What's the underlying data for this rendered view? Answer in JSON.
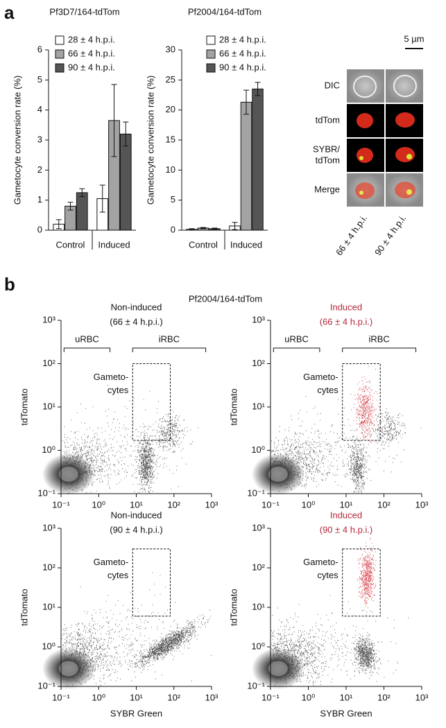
{
  "figure": {
    "panel_a_label": "a",
    "panel_b_label": "b",
    "panel_b_title": "Pf2004/164-tdTom",
    "micrograph": {
      "scale_bar": "5 µm",
      "rows": [
        [
          "DIC"
        ],
        [
          "tdTom"
        ],
        [
          "SYBR/",
          "tdTom"
        ],
        [
          "Merge"
        ]
      ],
      "columns": [
        "66 ± 4 h.p.i.",
        "90 ± 4 h.p.i."
      ]
    }
  },
  "chart_data": [
    {
      "type": "bar",
      "title": "Pf3D7/164-tdTom",
      "y_label": "Gametocyte conversion rate (%)",
      "categories": [
        "Control",
        "Induced"
      ],
      "series": [
        {
          "name": "28 ± 4 h.p.i.",
          "color": "#ffffff",
          "values": [
            0.2,
            1.05
          ],
          "errors": [
            0.15,
            0.45
          ]
        },
        {
          "name": "66 ± 4 h.p.i.",
          "color": "#a3a3a3",
          "values": [
            0.8,
            3.65
          ],
          "errors": [
            0.13,
            1.2
          ]
        },
        {
          "name": "90 ± 4 h.p.i.",
          "color": "#555555",
          "values": [
            1.25,
            3.2
          ],
          "errors": [
            0.13,
            0.4
          ]
        }
      ],
      "ylim": [
        0,
        6
      ],
      "yticks": [
        0,
        1,
        2,
        3,
        4,
        5,
        6
      ]
    },
    {
      "type": "bar",
      "title": "Pf2004/164-tdTom",
      "y_label": "Gametocyte conversion rate (%)",
      "categories": [
        "Control",
        "Induced"
      ],
      "series": [
        {
          "name": "28 ± 4 h.p.i.",
          "color": "#ffffff",
          "values": [
            0.15,
            0.7
          ],
          "errors": [
            0.1,
            0.6
          ]
        },
        {
          "name": "66 ± 4 h.p.i.",
          "color": "#a3a3a3",
          "values": [
            0.35,
            21.3
          ],
          "errors": [
            0.1,
            2
          ]
        },
        {
          "name": "90 ± 4 h.p.i.",
          "color": "#555555",
          "values": [
            0.25,
            23.5
          ],
          "errors": [
            0.1,
            1.1
          ]
        }
      ],
      "ylim": [
        0,
        30
      ],
      "yticks": [
        0,
        5,
        10,
        15,
        20,
        25,
        30
      ]
    },
    {
      "type": "flow",
      "title": [
        "Non-induced",
        "(66 ± 4 h.p.i.)"
      ],
      "title_color": "#111111",
      "y_label": "tdTomato",
      "brackets": [
        "uRBC",
        "iRBC"
      ],
      "gate_label": [
        "Gameto-",
        "cytes"
      ],
      "log_scale": true,
      "xlim": [
        0.1,
        1000
      ],
      "ylim": [
        0.1,
        1000
      ],
      "xticks": [
        {
          "value": 0.1,
          "label": "10⁻¹"
        },
        {
          "value": 1,
          "label": "10⁰"
        },
        {
          "value": 10,
          "label": "10¹"
        },
        {
          "value": 100,
          "label": "10²"
        },
        {
          "value": 1000,
          "label": "10³"
        }
      ],
      "yticks": [
        {
          "value": 0.1,
          "label": "10⁻¹"
        },
        {
          "value": 1,
          "label": "10⁰"
        },
        {
          "value": 10,
          "label": "10¹"
        },
        {
          "value": 100,
          "label": "10²"
        },
        {
          "value": 1000,
          "label": "10³"
        }
      ]
    },
    {
      "type": "flow",
      "title": [
        "Induced",
        "(66 ± 4 h.p.i.)"
      ],
      "title_color": "#b5283a",
      "y_label": "tdTomato",
      "brackets": [
        "uRBC",
        "iRBC"
      ],
      "gate_label": [
        "Gameto-",
        "cytes"
      ],
      "log_scale": true,
      "xlim": [
        0.1,
        1000
      ],
      "ylim": [
        0.1,
        1000
      ],
      "xticks": [
        {
          "value": 0.1,
          "label": "10⁻¹"
        },
        {
          "value": 1,
          "label": "10⁰"
        },
        {
          "value": 10,
          "label": "10¹"
        },
        {
          "value": 100,
          "label": "10²"
        },
        {
          "value": 1000,
          "label": "10³"
        }
      ],
      "yticks": [
        {
          "value": 0.1,
          "label": "10⁻¹"
        },
        {
          "value": 1,
          "label": "10⁰"
        },
        {
          "value": 10,
          "label": "10¹"
        },
        {
          "value": 100,
          "label": "10²"
        },
        {
          "value": 1000,
          "label": "10³"
        }
      ]
    },
    {
      "type": "flow",
      "title": [
        "Non-induced",
        "(90 ± 4 h.p.i.)"
      ],
      "title_color": "#111111",
      "y_label": "tdTomato",
      "x_label": "SYBR Green",
      "gate_label": [
        "Gameto-",
        "cytes"
      ],
      "log_scale": true,
      "xlim": [
        0.1,
        1000
      ],
      "ylim": [
        0.1,
        1000
      ],
      "xticks": [
        {
          "value": 0.1,
          "label": "10⁻¹"
        },
        {
          "value": 1,
          "label": "10⁰"
        },
        {
          "value": 10,
          "label": "10¹"
        },
        {
          "value": 100,
          "label": "10²"
        },
        {
          "value": 1000,
          "label": "10³"
        }
      ],
      "yticks": [
        {
          "value": 0.1,
          "label": "10⁻¹"
        },
        {
          "value": 1,
          "label": "10⁰"
        },
        {
          "value": 10,
          "label": "10¹"
        },
        {
          "value": 100,
          "label": "10²"
        },
        {
          "value": 1000,
          "label": "10³"
        }
      ]
    },
    {
      "type": "flow",
      "title": [
        "Induced",
        "(90 ± 4 h.p.i.)"
      ],
      "title_color": "#b5283a",
      "y_label": "tdTomato",
      "x_label": "SYBR Green",
      "gate_label": [
        "Gameto-",
        "cytes"
      ],
      "log_scale": true,
      "xlim": [
        0.1,
        1000
      ],
      "ylim": [
        0.1,
        1000
      ],
      "xticks": [
        {
          "value": 0.1,
          "label": "10⁻¹"
        },
        {
          "value": 1,
          "label": "10⁰"
        },
        {
          "value": 10,
          "label": "10¹"
        },
        {
          "value": 100,
          "label": "10²"
        },
        {
          "value": 1000,
          "label": "10³"
        }
      ],
      "yticks": [
        {
          "value": 0.1,
          "label": "10⁻¹"
        },
        {
          "value": 1,
          "label": "10⁰"
        },
        {
          "value": 10,
          "label": "10¹"
        },
        {
          "value": 100,
          "label": "10²"
        },
        {
          "value": 1000,
          "label": "10³"
        }
      ]
    }
  ]
}
